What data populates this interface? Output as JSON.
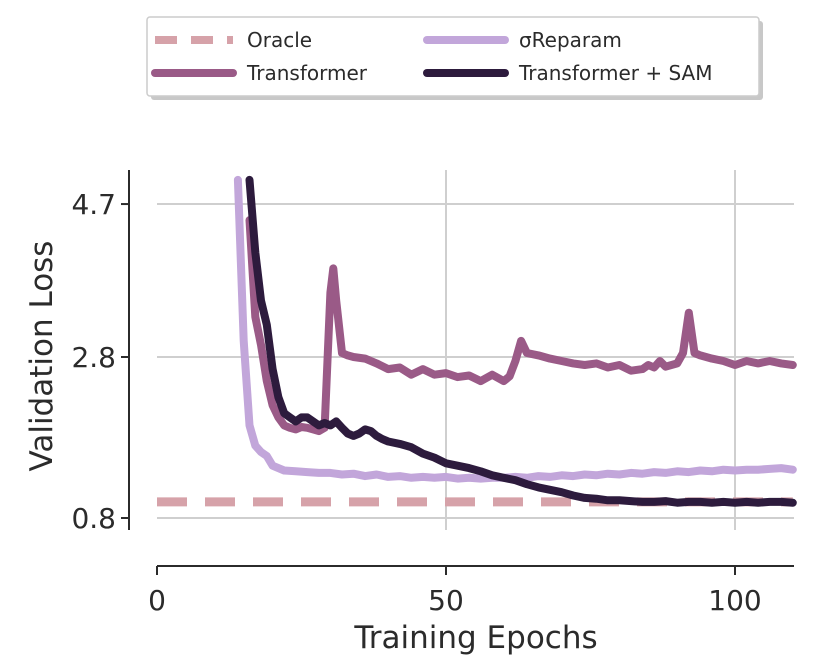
{
  "chart_data": {
    "type": "line",
    "xlabel": "Training Epochs",
    "ylabel": "Validation Loss",
    "xlim": [
      0,
      110
    ],
    "ylim": [
      0.8,
      5.0
    ],
    "xticks": [
      0,
      50,
      100
    ],
    "xtick_labels": [
      "0",
      "50",
      "100"
    ],
    "yticks": [
      0.8,
      2.8,
      4.7
    ],
    "ytick_labels": [
      "0.8",
      "2.8",
      "4.7"
    ],
    "grid": true,
    "legend": "top (above plot), 2 columns",
    "series": [
      {
        "name": "Oracle",
        "color": "#d6a2a9",
        "style": "dashed",
        "x": [
          0,
          110
        ],
        "y": [
          1.0,
          1.0
        ]
      },
      {
        "name": "σReparam",
        "color": "#c2a6da",
        "style": "solid",
        "x": [
          14,
          15,
          16,
          17,
          18,
          19,
          20,
          22,
          24,
          26,
          28,
          30,
          32,
          34,
          36,
          38,
          40,
          42,
          44,
          46,
          48,
          50,
          52,
          54,
          56,
          58,
          60,
          62,
          64,
          66,
          68,
          70,
          72,
          74,
          76,
          78,
          80,
          82,
          84,
          86,
          88,
          90,
          92,
          94,
          96,
          98,
          100,
          102,
          104,
          106,
          108,
          110
        ],
        "y": [
          5.0,
          3.0,
          1.95,
          1.7,
          1.62,
          1.57,
          1.45,
          1.39,
          1.38,
          1.37,
          1.36,
          1.36,
          1.34,
          1.35,
          1.32,
          1.34,
          1.31,
          1.32,
          1.3,
          1.31,
          1.3,
          1.31,
          1.29,
          1.3,
          1.29,
          1.3,
          1.3,
          1.31,
          1.3,
          1.32,
          1.31,
          1.33,
          1.32,
          1.34,
          1.33,
          1.35,
          1.34,
          1.36,
          1.35,
          1.37,
          1.36,
          1.38,
          1.37,
          1.39,
          1.38,
          1.4,
          1.39,
          1.4,
          1.4,
          1.41,
          1.42,
          1.4
        ]
      },
      {
        "name": "Transformer",
        "color": "#9a5a87",
        "style": "solid",
        "x": [
          16,
          17,
          18,
          19,
          20,
          21,
          22,
          23,
          24,
          25,
          26,
          27,
          28,
          29,
          30,
          30.5,
          31,
          32,
          33,
          34,
          36,
          38,
          40,
          42,
          44,
          46,
          48,
          50,
          52,
          54,
          56,
          58,
          60,
          61,
          62,
          63,
          64,
          66,
          68,
          70,
          72,
          74,
          76,
          78,
          80,
          82,
          84,
          85,
          86,
          87,
          88,
          90,
          91,
          92,
          93,
          94,
          96,
          98,
          100,
          102,
          104,
          106,
          108,
          110
        ],
        "y": [
          4.5,
          3.3,
          2.95,
          2.5,
          2.2,
          2.05,
          1.95,
          1.92,
          1.9,
          1.93,
          1.92,
          1.9,
          1.88,
          1.92,
          3.6,
          3.9,
          3.5,
          2.85,
          2.82,
          2.8,
          2.78,
          2.72,
          2.65,
          2.67,
          2.58,
          2.65,
          2.58,
          2.6,
          2.55,
          2.57,
          2.5,
          2.58,
          2.5,
          2.56,
          2.75,
          3.0,
          2.85,
          2.82,
          2.78,
          2.75,
          2.72,
          2.7,
          2.72,
          2.67,
          2.7,
          2.63,
          2.65,
          2.7,
          2.67,
          2.75,
          2.68,
          2.72,
          2.85,
          3.35,
          2.85,
          2.82,
          2.78,
          2.75,
          2.7,
          2.75,
          2.72,
          2.75,
          2.72,
          2.7
        ]
      },
      {
        "name": "Transformer + SAM",
        "color": "#2d1b3d",
        "style": "solid",
        "x": [
          16,
          17,
          18,
          19,
          20,
          21,
          22,
          23,
          24,
          25,
          26,
          27,
          28,
          29,
          30,
          31,
          32,
          33,
          34,
          35,
          36,
          37,
          38,
          39,
          40,
          42,
          44,
          46,
          48,
          50,
          52,
          54,
          56,
          58,
          60,
          62,
          64,
          66,
          68,
          70,
          72,
          74,
          76,
          78,
          80,
          82,
          84,
          86,
          88,
          90,
          92,
          94,
          96,
          98,
          100,
          102,
          104,
          106,
          108,
          110
        ],
        "y": [
          5.0,
          4.1,
          3.5,
          3.2,
          2.65,
          2.3,
          2.1,
          2.05,
          2.0,
          2.05,
          2.05,
          2.0,
          1.95,
          1.98,
          1.95,
          2.0,
          1.92,
          1.85,
          1.82,
          1.85,
          1.9,
          1.88,
          1.82,
          1.78,
          1.75,
          1.72,
          1.68,
          1.6,
          1.55,
          1.48,
          1.45,
          1.42,
          1.38,
          1.33,
          1.3,
          1.27,
          1.22,
          1.18,
          1.15,
          1.12,
          1.08,
          1.05,
          1.04,
          1.02,
          1.02,
          1.01,
          1.0,
          1.0,
          1.01,
          0.99,
          1.0,
          1.0,
          0.99,
          1.0,
          0.99,
          1.0,
          0.99,
          1.0,
          1.0,
          0.99
        ]
      }
    ]
  }
}
